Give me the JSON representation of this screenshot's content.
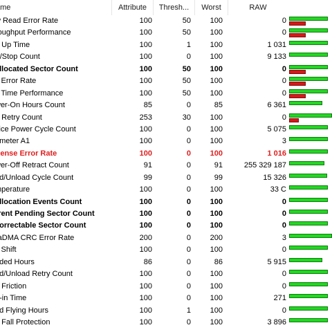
{
  "columns": {
    "name": "ame",
    "attribute": "Attribute",
    "threshold": "Thresh...",
    "worst": "Worst",
    "raw": "RAW"
  },
  "colors": {
    "ok_bar": "#22d822",
    "warn_bar": "#d81818",
    "alert_text": "#e01e1e"
  },
  "rows": [
    {
      "name": "w Read Error Rate",
      "attribute": "100",
      "threshold": "50",
      "worst": "100",
      "raw": "0",
      "style": "normal",
      "health": 0.9,
      "risk": 0.38
    },
    {
      "name": "roughput Performance",
      "attribute": "100",
      "threshold": "50",
      "worst": "100",
      "raw": "0",
      "style": "normal",
      "health": 0.9,
      "risk": 0.38
    },
    {
      "name": "n Up Time",
      "attribute": "100",
      "threshold": "1",
      "worst": "100",
      "raw": "1 031",
      "style": "normal",
      "health": 0.9,
      "risk": 0
    },
    {
      "name": "rt/Stop Count",
      "attribute": "100",
      "threshold": "0",
      "worst": "100",
      "raw": "9 133",
      "style": "normal",
      "health": 0.9,
      "risk": 0
    },
    {
      "name": "allocated Sector Count",
      "attribute": "100",
      "threshold": "50",
      "worst": "100",
      "raw": "0",
      "style": "bold",
      "health": 0.9,
      "risk": 0.38
    },
    {
      "name": "k Error Rate",
      "attribute": "100",
      "threshold": "50",
      "worst": "100",
      "raw": "0",
      "style": "normal",
      "health": 0.9,
      "risk": 0.38
    },
    {
      "name": "k Time Performance",
      "attribute": "100",
      "threshold": "50",
      "worst": "100",
      "raw": "0",
      "style": "normal",
      "health": 0.9,
      "risk": 0.38
    },
    {
      "name": "wer-On Hours Count",
      "attribute": "85",
      "threshold": "0",
      "worst": "85",
      "raw": "6 361",
      "style": "normal",
      "health": 0.77,
      "risk": 0
    },
    {
      "name": "n Retry Count",
      "attribute": "253",
      "threshold": "30",
      "worst": "100",
      "raw": "0",
      "style": "normal",
      "health": 1.0,
      "risk": 0.22
    },
    {
      "name": "vice Power Cycle Count",
      "attribute": "100",
      "threshold": "0",
      "worst": "100",
      "raw": "5 075",
      "style": "normal",
      "health": 0.9,
      "risk": 0
    },
    {
      "name": "ameter A1",
      "attribute": "100",
      "threshold": "0",
      "worst": "100",
      "raw": "3",
      "style": "normal",
      "health": 0.9,
      "risk": 0
    },
    {
      "name": "Sense Error Rate",
      "attribute": "100",
      "threshold": "0",
      "worst": "100",
      "raw": "1 016",
      "style": "alert",
      "health": 0.9,
      "risk": 0
    },
    {
      "name": "wer-Off Retract Count",
      "attribute": "91",
      "threshold": "0",
      "worst": "91",
      "raw": "255 329 187",
      "style": "normal",
      "health": 0.82,
      "risk": 0
    },
    {
      "name": "ad/Unload Cycle Count",
      "attribute": "99",
      "threshold": "0",
      "worst": "99",
      "raw": "15 326",
      "style": "normal",
      "health": 0.89,
      "risk": 0
    },
    {
      "name": "mperature",
      "attribute": "100",
      "threshold": "0",
      "worst": "100",
      "raw": "33 C",
      "style": "normal",
      "health": 0.9,
      "risk": 0
    },
    {
      "name": "allocation Events Count",
      "attribute": "100",
      "threshold": "0",
      "worst": "100",
      "raw": "0",
      "style": "bold",
      "health": 0.9,
      "risk": 0
    },
    {
      "name": "rrent Pending Sector Count",
      "attribute": "100",
      "threshold": "0",
      "worst": "100",
      "raw": "0",
      "style": "bold",
      "health": 0.9,
      "risk": 0
    },
    {
      "name": "correctable Sector Count",
      "attribute": "100",
      "threshold": "0",
      "worst": "100",
      "raw": "0",
      "style": "bold",
      "health": 0.9,
      "risk": 0
    },
    {
      "name": "raDMA CRC Error Rate",
      "attribute": "200",
      "threshold": "0",
      "worst": "200",
      "raw": "3",
      "style": "normal",
      "health": 1.0,
      "risk": 0
    },
    {
      "name": "k Shift",
      "attribute": "100",
      "threshold": "0",
      "worst": "100",
      "raw": "0",
      "style": "normal",
      "health": 0.9,
      "risk": 0
    },
    {
      "name": "aded Hours",
      "attribute": "86",
      "threshold": "0",
      "worst": "86",
      "raw": "5 915",
      "style": "normal",
      "health": 0.77,
      "risk": 0
    },
    {
      "name": "ad/Unload Retry Count",
      "attribute": "100",
      "threshold": "0",
      "worst": "100",
      "raw": "0",
      "style": "normal",
      "health": 0.9,
      "risk": 0
    },
    {
      "name": "d Friction",
      "attribute": "100",
      "threshold": "0",
      "worst": "100",
      "raw": "0",
      "style": "normal",
      "health": 0.9,
      "risk": 0
    },
    {
      "name": "d-in Time",
      "attribute": "100",
      "threshold": "0",
      "worst": "100",
      "raw": "271",
      "style": "normal",
      "health": 0.9,
      "risk": 0
    },
    {
      "name": "ad Flying Hours",
      "attribute": "100",
      "threshold": "1",
      "worst": "100",
      "raw": "0",
      "style": "normal",
      "health": 0.9,
      "risk": 0
    },
    {
      "name": "e Fall Protection",
      "attribute": "100",
      "threshold": "0",
      "worst": "100",
      "raw": "3 896",
      "style": "normal",
      "health": 0.9,
      "risk": 0
    }
  ]
}
